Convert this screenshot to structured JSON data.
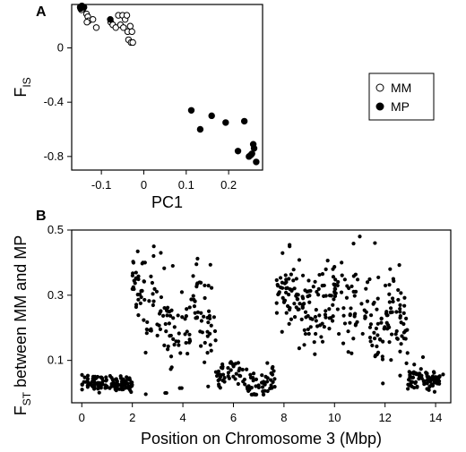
{
  "chart_data": [
    {
      "panel": "A",
      "type": "scatter",
      "xlabel": "PC1",
      "ylabel_main": "F",
      "ylabel_sub": "IS",
      "xlim": [
        -0.17,
        0.28
      ],
      "ylim": [
        -0.9,
        0.32
      ],
      "xticks": [
        -0.1,
        0.0,
        0.1,
        0.2
      ],
      "xtick_labels": [
        "-0.1",
        "0",
        "0.1",
        "0.2"
      ],
      "yticks": [
        0.0,
        -0.4,
        -0.8
      ],
      "ytick_labels": [
        "0",
        "-0.4",
        "-0.8"
      ],
      "legend": {
        "position": "right",
        "entries": [
          {
            "name": "MM",
            "marker": "open"
          },
          {
            "name": "MP",
            "marker": "filled"
          }
        ]
      },
      "series": [
        {
          "name": "MM",
          "marker": "open",
          "points": [
            [
              -0.148,
              0.29
            ],
            [
              -0.145,
              0.3
            ],
            [
              -0.143,
              0.29
            ],
            [
              -0.147,
              0.28
            ],
            [
              -0.135,
              0.25
            ],
            [
              -0.132,
              0.23
            ],
            [
              -0.13,
              0.2
            ],
            [
              -0.134,
              0.19
            ],
            [
              -0.12,
              0.21
            ],
            [
              -0.112,
              0.15
            ],
            [
              -0.078,
              0.19
            ],
            [
              -0.073,
              0.17
            ],
            [
              -0.066,
              0.15
            ],
            [
              -0.06,
              0.24
            ],
            [
              -0.055,
              0.17
            ],
            [
              -0.05,
              0.24
            ],
            [
              -0.048,
              0.15
            ],
            [
              -0.044,
              0.21
            ],
            [
              -0.04,
              0.24
            ],
            [
              -0.038,
              0.12
            ],
            [
              -0.036,
              0.06
            ],
            [
              -0.032,
              0.16
            ],
            [
              -0.03,
              0.04
            ],
            [
              -0.028,
              0.12
            ],
            [
              -0.026,
              0.04
            ]
          ]
        },
        {
          "name": "MP",
          "marker": "filled",
          "points": [
            [
              -0.15,
              0.3
            ],
            [
              -0.146,
              0.31
            ],
            [
              -0.141,
              0.3
            ],
            [
              -0.149,
              0.29
            ],
            [
              -0.079,
              0.21
            ],
            [
              0.112,
              -0.46
            ],
            [
              0.133,
              -0.6
            ],
            [
              0.16,
              -0.5
            ],
            [
              0.193,
              -0.55
            ],
            [
              0.222,
              -0.76
            ],
            [
              0.237,
              -0.54
            ],
            [
              0.248,
              -0.8
            ],
            [
              0.252,
              -0.79
            ],
            [
              0.255,
              -0.78
            ],
            [
              0.258,
              -0.71
            ],
            [
              0.26,
              -0.74
            ],
            [
              0.265,
              -0.84
            ]
          ]
        }
      ]
    },
    {
      "panel": "B",
      "type": "scatter",
      "xlabel": "Position on Chromosome 3 (Mbp)",
      "ylabel_main": "F",
      "ylabel_sub": "ST",
      "ylabel_rest": " between MM and MP",
      "xlim": [
        -0.4,
        14.6
      ],
      "ylim": [
        -0.03,
        0.5
      ],
      "xticks": [
        0,
        2,
        4,
        6,
        8,
        10,
        12,
        14
      ],
      "xtick_labels": [
        "0",
        "2",
        "4",
        "6",
        "8",
        "10",
        "12",
        "14"
      ],
      "yticks": [
        0.1,
        0.3,
        0.5
      ],
      "ytick_labels": [
        "0.1",
        "0.3",
        "0.5"
      ],
      "series": [
        {
          "name": "",
          "marker": "filled",
          "segments": [
            {
              "start": 0.0,
              "end": 2.0,
              "count": 120,
              "mean": 0.03,
              "spread": 0.02,
              "wave_amp": 0.0,
              "wave_freq": 0
            },
            {
              "start": 2.0,
              "end": 2.5,
              "count": 32,
              "mean": 0.33,
              "spread": 0.08,
              "wave_amp": 0.0,
              "wave_freq": 0
            },
            {
              "start": 2.5,
              "end": 5.3,
              "count": 120,
              "mean": 0.22,
              "spread": 0.11,
              "wave_amp": 0.05,
              "wave_freq": 1.2
            },
            {
              "start": 5.3,
              "end": 7.7,
              "count": 95,
              "mean": 0.04,
              "spread": 0.04,
              "wave_amp": 0.03,
              "wave_freq": 0.9
            },
            {
              "start": 7.7,
              "end": 10.5,
              "count": 150,
              "mean": 0.27,
              "spread": 0.1,
              "wave_amp": 0.04,
              "wave_freq": 1.0
            },
            {
              "start": 10.5,
              "end": 12.9,
              "count": 120,
              "mean": 0.22,
              "spread": 0.11,
              "wave_amp": 0.04,
              "wave_freq": 1.4
            },
            {
              "start": 12.9,
              "end": 14.3,
              "count": 85,
              "mean": 0.04,
              "spread": 0.025,
              "wave_amp": 0.0,
              "wave_freq": 0
            }
          ],
          "points": [
            [
              2.85,
              0.45
            ],
            [
              3.3,
              0.0
            ],
            [
              3.35,
              0.0
            ],
            [
              5.0,
              0.02
            ],
            [
              11.0,
              0.48
            ],
            [
              11.6,
              0.46
            ],
            [
              12.2,
              0.38
            ],
            [
              6.8,
              0.06
            ],
            [
              13.5,
              0.11
            ],
            [
              3.6,
              0.39
            ]
          ]
        }
      ]
    }
  ]
}
